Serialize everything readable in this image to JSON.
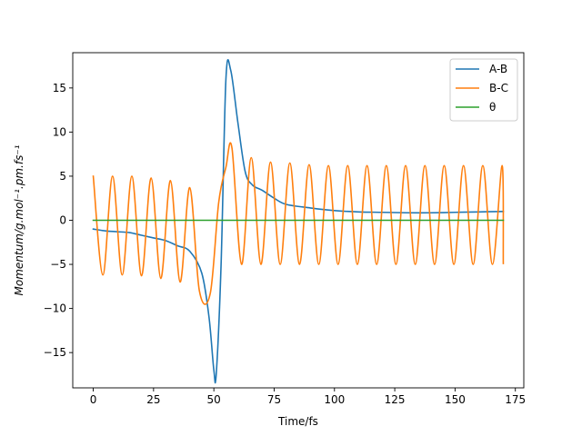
{
  "chart_data": {
    "type": "line",
    "title": "",
    "xlabel": "Time/fs",
    "ylabel": "Momentum/g.mol⁻¹.pm.fs⁻¹",
    "xlim": [
      -8.5,
      178.5
    ],
    "ylim": [
      -19,
      19
    ],
    "xticks": [
      0,
      25,
      50,
      75,
      100,
      125,
      150,
      175
    ],
    "xtick_labels": [
      "0",
      "25",
      "50",
      "75",
      "100",
      "125",
      "150",
      "175"
    ],
    "yticks": [
      -15,
      -10,
      -5,
      0,
      5,
      10,
      15
    ],
    "ytick_labels": [
      "−15",
      "−10",
      "−5",
      "0",
      "5",
      "10",
      "15"
    ],
    "grid": false,
    "legend_position": "top-right",
    "series": [
      {
        "name": "A-B",
        "color": "#1f77b4",
        "x": [
          0,
          5,
          10,
          15,
          20,
          25,
          30,
          35,
          40,
          45,
          48,
          50,
          51,
          53,
          55,
          57,
          60,
          63,
          66,
          70,
          75,
          80,
          90,
          100,
          110,
          120,
          130,
          140,
          150,
          160,
          170
        ],
        "y": [
          -1.0,
          -1.2,
          -1.3,
          -1.4,
          -1.7,
          -2.0,
          -2.3,
          -2.9,
          -3.5,
          -6.0,
          -11.0,
          -17.0,
          -17.4,
          -5.0,
          16.0,
          17.0,
          11.0,
          5.5,
          4.0,
          3.4,
          2.5,
          1.8,
          1.4,
          1.1,
          0.95,
          0.9,
          0.85,
          0.85,
          0.9,
          0.95,
          1.0
        ]
      },
      {
        "name": "B-C",
        "color": "#ff7f0e",
        "x": [
          0,
          4,
          8,
          12,
          16,
          20,
          24,
          28,
          32,
          36,
          40,
          44,
          48.5,
          52,
          55,
          57.5,
          61.5,
          65.5,
          69.5,
          73.5,
          77.5,
          81.5,
          85.5,
          89.5,
          93.5,
          97.5,
          101.5,
          105.5,
          109.5,
          113.5,
          117.5,
          121.5,
          125.5,
          129.5,
          133.5,
          137.5,
          141.5,
          145.5,
          149.5,
          153.5,
          157.5,
          161.5,
          165.5,
          169.5,
          170
        ],
        "y": [
          5.0,
          -6.2,
          5.0,
          -6.2,
          5.0,
          -6.3,
          4.8,
          -6.6,
          4.5,
          -7.0,
          3.7,
          -8.0,
          -8.3,
          2.0,
          6.0,
          8.2,
          -5.0,
          7.1,
          -5.0,
          6.6,
          -5.0,
          6.5,
          -5.0,
          6.3,
          -5.0,
          6.2,
          -5.0,
          6.2,
          -5.0,
          6.2,
          -5.0,
          6.2,
          -5.0,
          6.2,
          -5.0,
          6.2,
          -5.0,
          6.2,
          -5.0,
          6.2,
          -5.0,
          6.2,
          -5.0,
          6.2,
          -4.9
        ]
      },
      {
        "name": "θ",
        "color": "#2ca02c",
        "x": [
          0,
          170
        ],
        "y": [
          0,
          0
        ]
      }
    ]
  }
}
